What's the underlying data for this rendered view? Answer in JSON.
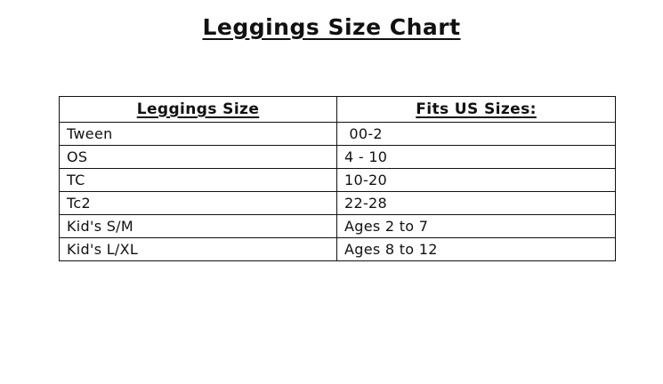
{
  "title": "Leggings Size Chart",
  "table": {
    "headers": [
      "Leggings Size",
      "Fits US Sizes:"
    ],
    "rows": [
      {
        "leggings_size": "Tween",
        "fits_us_sizes": " 00-2"
      },
      {
        "leggings_size": "OS",
        "fits_us_sizes": "4 - 10"
      },
      {
        "leggings_size": "TC",
        "fits_us_sizes": "10-20"
      },
      {
        "leggings_size": "Tc2",
        "fits_us_sizes": "22-28"
      },
      {
        "leggings_size": "Kid's S/M",
        "fits_us_sizes": "Ages 2 to 7"
      },
      {
        "leggings_size": "Kid's L/XL",
        "fits_us_sizes": "Ages 8 to 12"
      }
    ]
  },
  "colors": {
    "text": "#111111",
    "border": "#111111",
    "background": "#ffffff"
  }
}
